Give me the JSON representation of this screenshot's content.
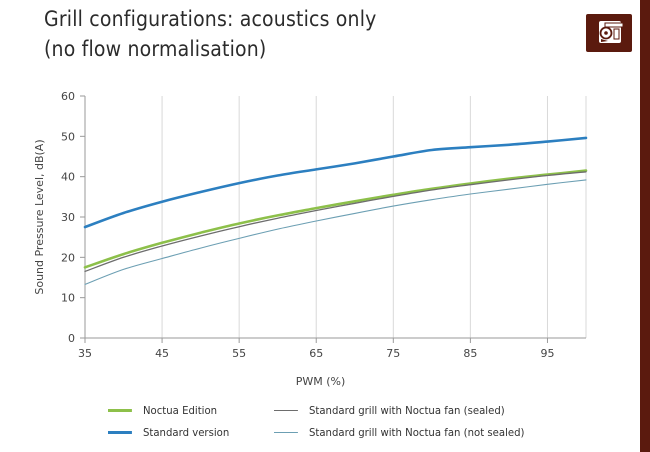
{
  "title_lines": [
    "Grill configurations: acoustics only",
    "(no flow normalisation)"
  ],
  "brand_colors": {
    "logo": "#5b1a0e",
    "bar": "#5b1a0e"
  },
  "logo_icon": "owl-logo-icon",
  "chart_data": {
    "type": "line",
    "title": "Grill configurations: acoustics only (no flow normalisation)",
    "xlabel": "PWM (%)",
    "ylabel": "Sound Pressure Level, dB(A)",
    "xlim": [
      35,
      100
    ],
    "ylim": [
      0,
      60
    ],
    "xticks": [
      35,
      45,
      55,
      65,
      75,
      85,
      95
    ],
    "yticks": [
      0,
      10,
      20,
      30,
      40,
      50,
      60
    ],
    "grid": "vertical",
    "legend_position": "bottom",
    "series": [
      {
        "name": "Noctua Edition",
        "color": "#8dc04a",
        "width": 2.6,
        "x": [
          35,
          40,
          45,
          50,
          55,
          60,
          65,
          70,
          75,
          80,
          85,
          90,
          95,
          100
        ],
        "y": [
          17.5,
          20.8,
          23.6,
          26.1,
          28.4,
          30.4,
          32.2,
          33.9,
          35.5,
          37.0,
          38.3,
          39.5,
          40.5,
          41.5
        ]
      },
      {
        "name": "Standard grill with Noctua fan (sealed)",
        "color": "#6d6d6d",
        "width": 1.3,
        "x": [
          35,
          40,
          45,
          50,
          55,
          60,
          65,
          70,
          75,
          80,
          85,
          90,
          95,
          100
        ],
        "y": [
          16.5,
          20.0,
          22.8,
          25.3,
          27.6,
          29.7,
          31.6,
          33.4,
          35.1,
          36.7,
          38.0,
          39.2,
          40.3,
          41.2
        ]
      },
      {
        "name": "Standard version",
        "color": "#2c7fc0",
        "width": 2.6,
        "x": [
          35,
          40,
          45,
          50,
          55,
          60,
          65,
          70,
          75,
          80,
          85,
          90,
          95,
          100
        ],
        "y": [
          27.5,
          31.0,
          33.8,
          36.2,
          38.4,
          40.3,
          41.8,
          43.3,
          45.0,
          46.6,
          47.3,
          47.9,
          48.7,
          49.6
        ]
      },
      {
        "name": "Standard grill with Noctua fan (not sealed)",
        "color": "#6c9fb3",
        "width": 1.1,
        "x": [
          35,
          40,
          45,
          50,
          55,
          60,
          65,
          70,
          75,
          80,
          85,
          90,
          95,
          100
        ],
        "y": [
          13.3,
          17.0,
          19.7,
          22.3,
          24.7,
          27.0,
          29.0,
          30.9,
          32.7,
          34.3,
          35.7,
          36.9,
          38.1,
          39.2
        ]
      }
    ],
    "legend_order": [
      0,
      1,
      2,
      3
    ]
  }
}
